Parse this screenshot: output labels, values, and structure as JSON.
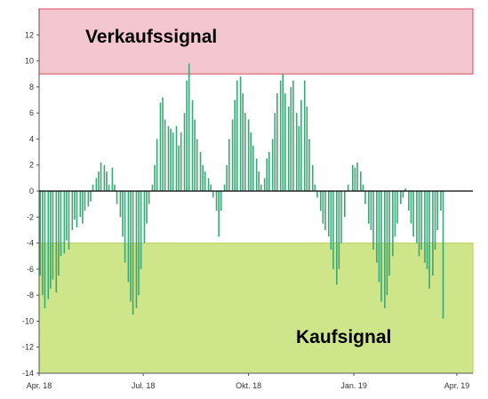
{
  "chart_data": {
    "type": "bar",
    "ylim": [
      -14,
      14
    ],
    "yticks": [
      -14,
      -12,
      -10,
      -8,
      -6,
      -4,
      -2,
      0,
      2,
      4,
      6,
      8,
      10,
      12
    ],
    "xlim": [
      "2018-04-01",
      "2019-04-15"
    ],
    "xticks": [
      {
        "date": "2018-04-01",
        "label": "Apr. 18"
      },
      {
        "date": "2018-07-01",
        "label": "Jul. 18"
      },
      {
        "date": "2018-10-01",
        "label": "Okt. 18"
      },
      {
        "date": "2019-01-01",
        "label": "Jan. 19"
      },
      {
        "date": "2019-04-01",
        "label": "Apr. 19"
      }
    ],
    "zones": [
      {
        "label": "Verkaufssignal",
        "from": 9,
        "to": 14,
        "color": "#f4c6cf",
        "border": "#d94b63"
      },
      {
        "label": "Kaufsignal",
        "from": -14,
        "to": -4,
        "color": "#cfe58a",
        "border": "#b7d15a"
      }
    ],
    "bar_color": "#3aa876",
    "series": [
      {
        "points": [
          [
            "2018-04-02",
            -6.5
          ],
          [
            "2018-04-04",
            -8.0
          ],
          [
            "2018-04-06",
            -9.0
          ],
          [
            "2018-04-09",
            -8.3
          ],
          [
            "2018-04-11",
            -7.5
          ],
          [
            "2018-04-13",
            -6.8
          ],
          [
            "2018-04-16",
            -7.8
          ],
          [
            "2018-04-18",
            -6.5
          ],
          [
            "2018-04-20",
            -5.0
          ],
          [
            "2018-04-23",
            -4.8
          ],
          [
            "2018-04-25",
            -3.8
          ],
          [
            "2018-04-27",
            -4.5
          ],
          [
            "2018-04-30",
            -3.0
          ],
          [
            "2018-05-02",
            -2.2
          ],
          [
            "2018-05-04",
            -2.8
          ],
          [
            "2018-05-07",
            -2.0
          ],
          [
            "2018-05-09",
            -2.5
          ],
          [
            "2018-05-11",
            -1.5
          ],
          [
            "2018-05-14",
            -1.2
          ],
          [
            "2018-05-16",
            -0.8
          ],
          [
            "2018-05-18",
            0.5
          ],
          [
            "2018-05-21",
            1.0
          ],
          [
            "2018-05-23",
            1.5
          ],
          [
            "2018-05-25",
            2.2
          ],
          [
            "2018-05-28",
            2.0
          ],
          [
            "2018-05-30",
            1.5
          ],
          [
            "2018-06-01",
            0.5
          ],
          [
            "2018-06-04",
            1.8
          ],
          [
            "2018-06-06",
            0.5
          ],
          [
            "2018-06-08",
            -1.0
          ],
          [
            "2018-06-11",
            -2.0
          ],
          [
            "2018-06-13",
            -3.5
          ],
          [
            "2018-06-15",
            -5.5
          ],
          [
            "2018-06-18",
            -7.0
          ],
          [
            "2018-06-20",
            -8.5
          ],
          [
            "2018-06-22",
            -9.5
          ],
          [
            "2018-06-25",
            -9.0
          ],
          [
            "2018-06-27",
            -8.0
          ],
          [
            "2018-06-29",
            -6.0
          ],
          [
            "2018-07-02",
            -4.0
          ],
          [
            "2018-07-04",
            -2.5
          ],
          [
            "2018-07-06",
            -1.0
          ],
          [
            "2018-07-09",
            0.5
          ],
          [
            "2018-07-11",
            2.0
          ],
          [
            "2018-07-13",
            4.0
          ],
          [
            "2018-07-16",
            6.8
          ],
          [
            "2018-07-18",
            7.2
          ],
          [
            "2018-07-20",
            5.5
          ],
          [
            "2018-07-23",
            5.0
          ],
          [
            "2018-07-25",
            4.8
          ],
          [
            "2018-07-27",
            4.5
          ],
          [
            "2018-07-30",
            5.0
          ],
          [
            "2018-08-01",
            3.5
          ],
          [
            "2018-08-03",
            4.5
          ],
          [
            "2018-08-06",
            6.0
          ],
          [
            "2018-08-08",
            8.5
          ],
          [
            "2018-08-10",
            9.8
          ],
          [
            "2018-08-13",
            7.0
          ],
          [
            "2018-08-15",
            5.5
          ],
          [
            "2018-08-17",
            4.0
          ],
          [
            "2018-08-20",
            3.0
          ],
          [
            "2018-08-22",
            2.0
          ],
          [
            "2018-08-24",
            1.5
          ],
          [
            "2018-08-27",
            1.0
          ],
          [
            "2018-08-29",
            0.5
          ],
          [
            "2018-08-31",
            -0.5
          ],
          [
            "2018-09-03",
            -1.5
          ],
          [
            "2018-09-05",
            -3.5
          ],
          [
            "2018-09-07",
            -1.5
          ],
          [
            "2018-09-10",
            0.5
          ],
          [
            "2018-09-12",
            2.0
          ],
          [
            "2018-09-14",
            4.0
          ],
          [
            "2018-09-17",
            5.5
          ],
          [
            "2018-09-19",
            7.0
          ],
          [
            "2018-09-21",
            8.5
          ],
          [
            "2018-09-24",
            8.8
          ],
          [
            "2018-09-26",
            7.5
          ],
          [
            "2018-09-28",
            6.0
          ],
          [
            "2018-10-01",
            5.5
          ],
          [
            "2018-10-03",
            4.5
          ],
          [
            "2018-10-05",
            3.5
          ],
          [
            "2018-10-08",
            2.5
          ],
          [
            "2018-10-10",
            1.5
          ],
          [
            "2018-10-12",
            0.5
          ],
          [
            "2018-10-15",
            1.0
          ],
          [
            "2018-10-17",
            2.5
          ],
          [
            "2018-10-19",
            3.0
          ],
          [
            "2018-10-22",
            4.0
          ],
          [
            "2018-10-24",
            6.0
          ],
          [
            "2018-10-26",
            7.5
          ],
          [
            "2018-10-29",
            8.5
          ],
          [
            "2018-10-31",
            9.0
          ],
          [
            "2018-11-02",
            7.5
          ],
          [
            "2018-11-05",
            6.5
          ],
          [
            "2018-11-07",
            8.0
          ],
          [
            "2018-11-09",
            8.5
          ],
          [
            "2018-11-12",
            6.0
          ],
          [
            "2018-11-14",
            5.0
          ],
          [
            "2018-11-16",
            7.0
          ],
          [
            "2018-11-19",
            8.5
          ],
          [
            "2018-11-21",
            6.5
          ],
          [
            "2018-11-23",
            4.0
          ],
          [
            "2018-11-26",
            2.0
          ],
          [
            "2018-11-28",
            0.5
          ],
          [
            "2018-11-30",
            -0.5
          ],
          [
            "2018-12-03",
            -1.5
          ],
          [
            "2018-12-05",
            -2.5
          ],
          [
            "2018-12-07",
            -3.0
          ],
          [
            "2018-12-10",
            -3.5
          ],
          [
            "2018-12-12",
            -4.5
          ],
          [
            "2018-12-14",
            -6.0
          ],
          [
            "2018-12-17",
            -7.2
          ],
          [
            "2018-12-19",
            -6.0
          ],
          [
            "2018-12-21",
            -4.0
          ],
          [
            "2018-12-24",
            -2.0
          ],
          [
            "2018-12-27",
            0.5
          ],
          [
            "2018-12-31",
            2.0
          ],
          [
            "2019-01-02",
            1.8
          ],
          [
            "2019-01-04",
            2.2
          ],
          [
            "2019-01-07",
            1.5
          ],
          [
            "2019-01-09",
            0.5
          ],
          [
            "2019-01-11",
            -1.0
          ],
          [
            "2019-01-14",
            -2.5
          ],
          [
            "2019-01-16",
            -3.0
          ],
          [
            "2019-01-18",
            -4.5
          ],
          [
            "2019-01-21",
            -5.5
          ],
          [
            "2019-01-23",
            -7.0
          ],
          [
            "2019-01-25",
            -8.5
          ],
          [
            "2019-01-28",
            -9.0
          ],
          [
            "2019-01-30",
            -8.0
          ],
          [
            "2019-02-01",
            -6.5
          ],
          [
            "2019-02-04",
            -5.0
          ],
          [
            "2019-02-06",
            -3.5
          ],
          [
            "2019-02-08",
            -2.5
          ],
          [
            "2019-02-11",
            -1.0
          ],
          [
            "2019-02-13",
            -0.5
          ],
          [
            "2019-02-15",
            0.2
          ],
          [
            "2019-02-18",
            -1.5
          ],
          [
            "2019-02-20",
            -2.5
          ],
          [
            "2019-02-22",
            -3.5
          ],
          [
            "2019-02-25",
            -4.0
          ],
          [
            "2019-02-27",
            -5.0
          ],
          [
            "2019-03-01",
            -4.5
          ],
          [
            "2019-03-04",
            -5.5
          ],
          [
            "2019-03-06",
            -6.0
          ],
          [
            "2019-03-08",
            -7.5
          ],
          [
            "2019-03-11",
            -6.5
          ],
          [
            "2019-03-13",
            -4.5
          ],
          [
            "2019-03-15",
            -3.0
          ],
          [
            "2019-03-18",
            -1.5
          ],
          [
            "2019-03-20",
            -9.8
          ]
        ]
      }
    ]
  }
}
